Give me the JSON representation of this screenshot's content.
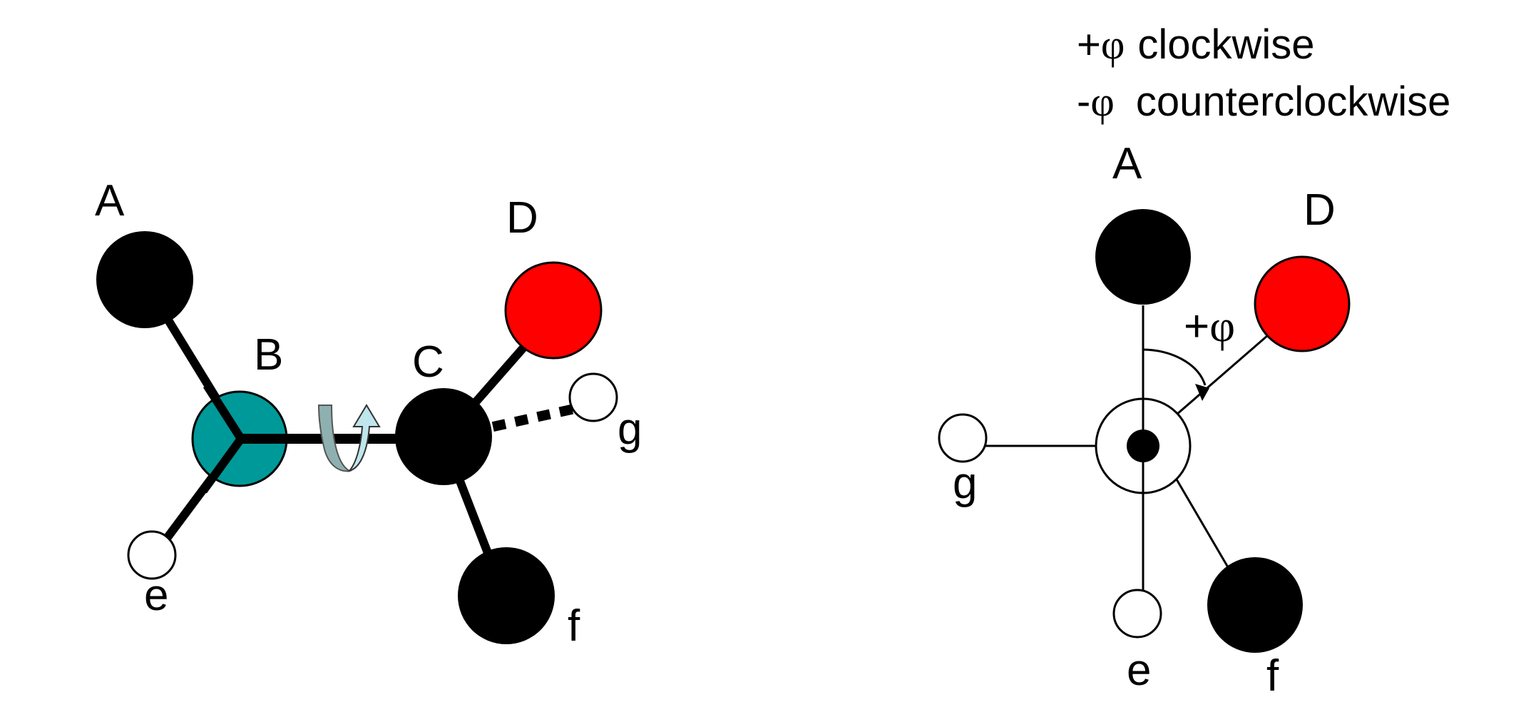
{
  "colors": {
    "atom_dark": "#000000",
    "atom_oxygen": "#ff0000",
    "atom_central": "#009999",
    "atom_light": "#ffffff",
    "rotation_arrow_back": "#8fb0b0",
    "rotation_arrow_front": "#bfe6ec"
  },
  "legend": {
    "sign_plus": "+",
    "sign_minus": "-",
    "phi_symbol": "φ",
    "clockwise_text": "clockwise",
    "counterclockwise_text": "counterclockwise"
  },
  "ball_and_stick": {
    "atom_labels": {
      "A": "A",
      "B": "B",
      "C": "C",
      "D": "D",
      "e": "e",
      "f": "f",
      "g": "g"
    },
    "rotation_arrow_icon": "curved-rotation-arrow"
  },
  "newman_projection": {
    "atom_labels": {
      "A": "A",
      "D": "D",
      "e": "e",
      "f": "f",
      "g": "g"
    },
    "angle_sign": "+",
    "angle_symbol": "φ"
  }
}
